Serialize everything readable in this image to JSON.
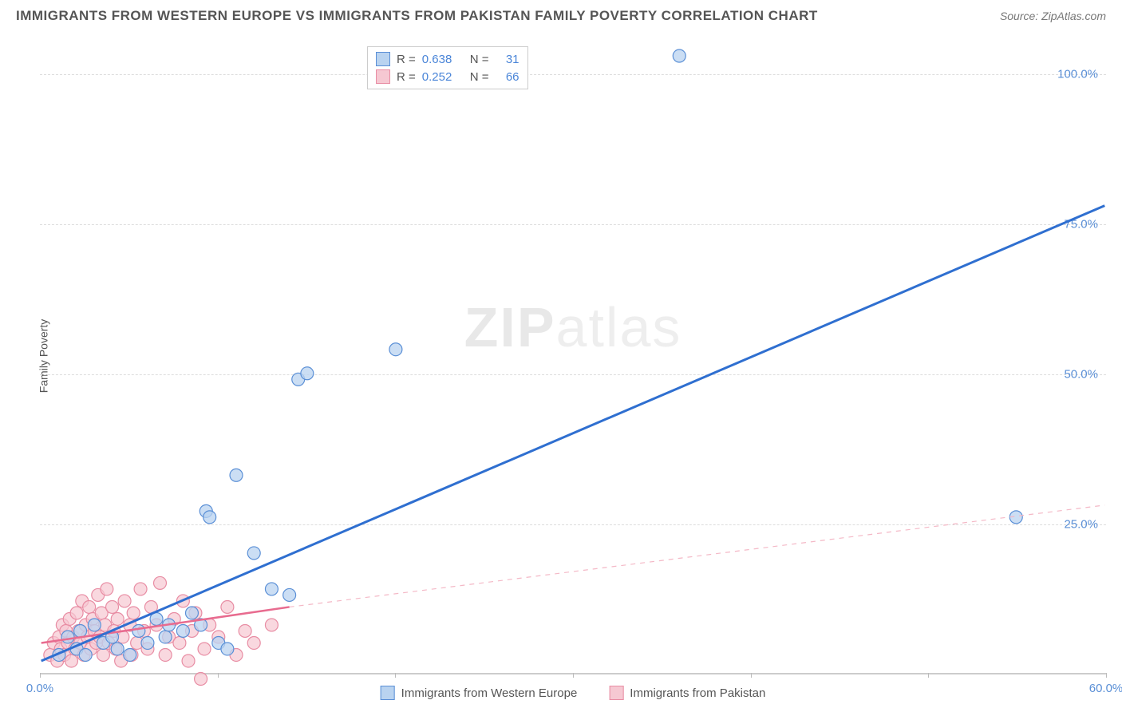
{
  "title": "IMMIGRANTS FROM WESTERN EUROPE VS IMMIGRANTS FROM PAKISTAN FAMILY POVERTY CORRELATION CHART",
  "source": "Source: ZipAtlas.com",
  "watermark1": "ZIP",
  "watermark2": "atlas",
  "y_axis_label": "Family Poverty",
  "chart": {
    "type": "scatter",
    "xlim": [
      0,
      60
    ],
    "ylim": [
      0,
      105
    ],
    "background_color": "#ffffff",
    "grid_color": "#dddddd",
    "y_ticks": [
      {
        "v": 25,
        "label": "25.0%"
      },
      {
        "v": 50,
        "label": "50.0%"
      },
      {
        "v": 75,
        "label": "75.0%"
      },
      {
        "v": 100,
        "label": "100.0%"
      }
    ],
    "y_tick_color": "#5a8fd6",
    "x_ticks": [
      {
        "v": 0,
        "label": "0.0%"
      },
      {
        "v": 10
      },
      {
        "v": 20
      },
      {
        "v": 30
      },
      {
        "v": 40
      },
      {
        "v": 50
      },
      {
        "v": 60,
        "label": "60.0%"
      }
    ],
    "x_tick_color": "#5a8fd6",
    "series": [
      {
        "name": "Immigrants from Western Europe",
        "color_fill": "#b9d3f0",
        "color_stroke": "#5a8fd6",
        "marker_radius": 8,
        "marker_opacity": 0.75,
        "R": "0.638",
        "N": "31",
        "trend": {
          "x1": 0,
          "y1": 2,
          "x2": 60,
          "y2": 78,
          "stroke": "#2f6fd0",
          "width": 3,
          "dash": "none"
        },
        "points": [
          [
            1,
            3
          ],
          [
            1.5,
            6
          ],
          [
            2,
            4
          ],
          [
            2.2,
            7
          ],
          [
            2.5,
            3
          ],
          [
            3,
            8
          ],
          [
            3.5,
            5
          ],
          [
            4,
            6
          ],
          [
            4.3,
            4
          ],
          [
            5,
            3
          ],
          [
            5.5,
            7
          ],
          [
            6,
            5
          ],
          [
            6.5,
            9
          ],
          [
            7,
            6
          ],
          [
            7.2,
            8
          ],
          [
            8,
            7
          ],
          [
            8.5,
            10
          ],
          [
            9,
            8
          ],
          [
            9.3,
            27
          ],
          [
            9.5,
            26
          ],
          [
            10,
            5
          ],
          [
            10.5,
            4
          ],
          [
            11,
            33
          ],
          [
            12,
            20
          ],
          [
            13,
            14
          ],
          [
            14,
            13
          ],
          [
            14.5,
            49
          ],
          [
            15,
            50
          ],
          [
            20,
            54
          ],
          [
            36,
            103
          ],
          [
            55,
            26
          ]
        ]
      },
      {
        "name": "Immigrants from Pakistan",
        "color_fill": "#f6c8d2",
        "color_stroke": "#e88ca3",
        "marker_radius": 8,
        "marker_opacity": 0.7,
        "R": "0.252",
        "N": "66",
        "trend_solid": {
          "x1": 0,
          "y1": 5,
          "x2": 14,
          "y2": 11,
          "stroke": "#e86b8f",
          "width": 2.5
        },
        "trend_dash": {
          "x1": 14,
          "y1": 11,
          "x2": 60,
          "y2": 28,
          "stroke": "#f4b8c6",
          "width": 1.2,
          "dash": "6,6"
        },
        "points": [
          [
            0.5,
            3
          ],
          [
            0.7,
            5
          ],
          [
            0.9,
            2
          ],
          [
            1,
            6
          ],
          [
            1.1,
            4
          ],
          [
            1.2,
            8
          ],
          [
            1.3,
            3
          ],
          [
            1.4,
            7
          ],
          [
            1.5,
            5
          ],
          [
            1.6,
            9
          ],
          [
            1.7,
            2
          ],
          [
            1.8,
            6
          ],
          [
            1.9,
            4
          ],
          [
            2,
            10
          ],
          [
            2.1,
            7
          ],
          [
            2.2,
            5
          ],
          [
            2.3,
            12
          ],
          [
            2.4,
            3
          ],
          [
            2.5,
            8
          ],
          [
            2.6,
            6
          ],
          [
            2.7,
            11
          ],
          [
            2.8,
            4
          ],
          [
            2.9,
            9
          ],
          [
            3,
            7
          ],
          [
            3.1,
            5
          ],
          [
            3.2,
            13
          ],
          [
            3.3,
            6
          ],
          [
            3.4,
            10
          ],
          [
            3.5,
            3
          ],
          [
            3.6,
            8
          ],
          [
            3.7,
            14
          ],
          [
            3.8,
            5
          ],
          [
            4,
            11
          ],
          [
            4.1,
            7
          ],
          [
            4.2,
            4
          ],
          [
            4.3,
            9
          ],
          [
            4.5,
            2
          ],
          [
            4.6,
            6
          ],
          [
            4.7,
            12
          ],
          [
            5,
            8
          ],
          [
            5.1,
            3
          ],
          [
            5.2,
            10
          ],
          [
            5.4,
            5
          ],
          [
            5.6,
            14
          ],
          [
            5.8,
            7
          ],
          [
            6,
            4
          ],
          [
            6.2,
            11
          ],
          [
            6.5,
            8
          ],
          [
            6.7,
            15
          ],
          [
            7,
            3
          ],
          [
            7.2,
            6
          ],
          [
            7.5,
            9
          ],
          [
            7.8,
            5
          ],
          [
            8,
            12
          ],
          [
            8.3,
            2
          ],
          [
            8.5,
            7
          ],
          [
            8.7,
            10
          ],
          [
            9,
            -1
          ],
          [
            9.2,
            4
          ],
          [
            9.5,
            8
          ],
          [
            10,
            6
          ],
          [
            10.5,
            11
          ],
          [
            11,
            3
          ],
          [
            11.5,
            7
          ],
          [
            12,
            5
          ],
          [
            13,
            8
          ]
        ]
      }
    ],
    "legend_bottom": [
      {
        "label": "Immigrants from Western Europe",
        "fill": "#b9d3f0",
        "stroke": "#5a8fd6"
      },
      {
        "label": "Immigrants from Pakistan",
        "fill": "#f6c8d2",
        "stroke": "#e88ca3"
      }
    ],
    "stat_legend_label_color": "#555555",
    "stat_legend_value_color": "#4a85d8"
  }
}
